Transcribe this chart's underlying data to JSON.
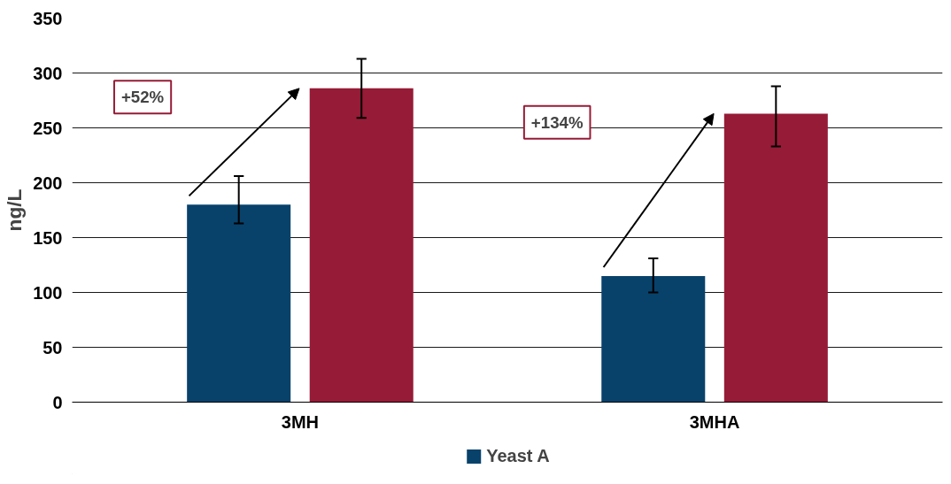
{
  "chart_data": {
    "type": "bar",
    "ylabel": "ng/L",
    "categories": [
      "3MH",
      "3MHA"
    ],
    "series": [
      {
        "name": "Yeast A",
        "color": "#08426b",
        "values": [
          180,
          115
        ],
        "errors": [
          [
            163,
            206
          ],
          [
            100,
            131
          ]
        ]
      },
      {
        "color": "#961b36",
        "values": [
          286,
          263
        ],
        "errors": [
          [
            259,
            313
          ],
          [
            233,
            288
          ]
        ]
      }
    ],
    "ylim": [
      0,
      350
    ],
    "yticks": [
      0,
      50,
      100,
      150,
      200,
      250,
      300,
      350
    ],
    "grid": "y",
    "legend": "bottom",
    "annotations": [
      "+52%",
      "+134%"
    ]
  }
}
